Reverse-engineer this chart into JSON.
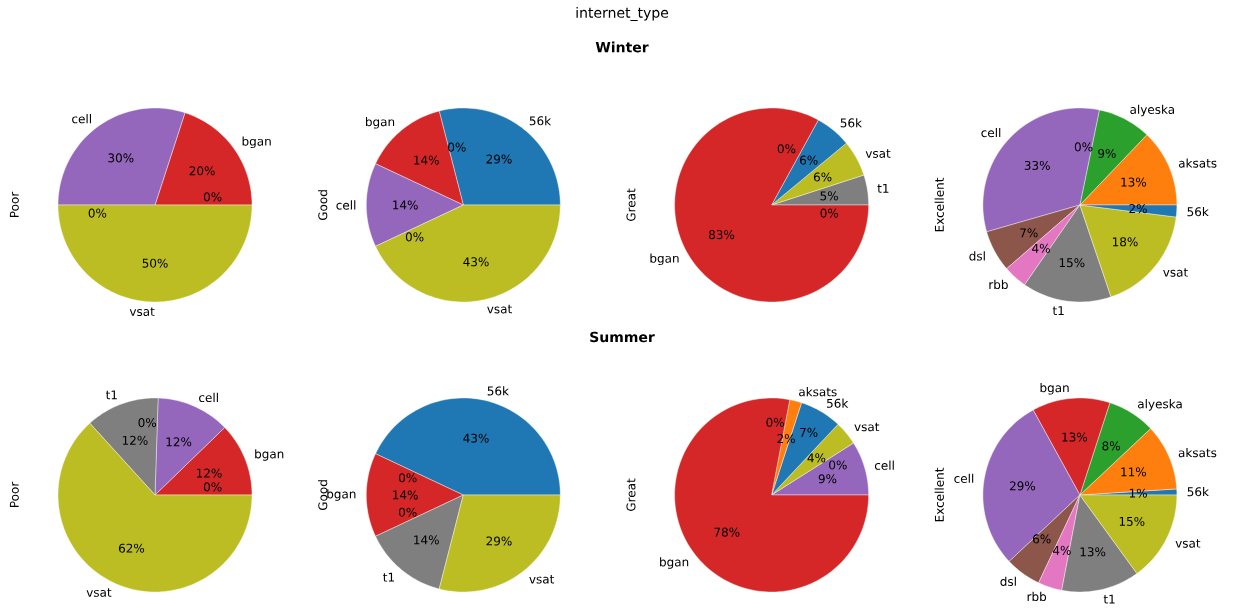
{
  "chart_data": [
    {
      "type": "pie",
      "annotations": [
        "internet_type",
        "Winter"
      ],
      "ylabel": "Poor",
      "categories": [
        "bgan",
        "cell",
        null,
        "vsat",
        null
      ],
      "values": [
        20,
        30,
        0,
        50,
        0
      ],
      "colors": [
        "#d62728",
        "#9467bd",
        "#8c564b",
        "#bcbd22",
        "#ff7f0e"
      ],
      "value_labels": [
        "20%",
        "30%",
        "0%",
        "50%",
        "0%"
      ]
    },
    {
      "type": "pie",
      "ylabel": "Good",
      "categories": [
        "56k",
        null,
        "bgan",
        "cell",
        null,
        "vsat"
      ],
      "values": [
        29,
        0,
        14,
        14,
        0,
        43
      ],
      "colors": [
        "#1f77b4",
        "#ff7f0e",
        "#d62728",
        "#9467bd",
        "#8c564b",
        "#bcbd22"
      ],
      "value_labels": [
        "29%",
        "0%",
        "14%",
        "14%",
        "0%",
        "43%"
      ]
    },
    {
      "type": "pie",
      "ylabel": "Great",
      "categories": [
        "t1",
        "vsat",
        "56k",
        null,
        "bgan",
        null
      ],
      "values": [
        5,
        6,
        6,
        0,
        83,
        0
      ],
      "colors": [
        "#7f7f7f",
        "#bcbd22",
        "#1f77b4",
        "#ff7f0e",
        "#d62728",
        "#8c564b"
      ],
      "value_labels": [
        "5%",
        "6%",
        "6%",
        "0%",
        "83%",
        "0%"
      ]
    },
    {
      "type": "pie",
      "ylabel": "Excellent",
      "categories": [
        "aksats",
        "alyeska",
        null,
        "cell",
        "dsl",
        "rbb",
        "t1",
        "vsat",
        "56k"
      ],
      "values": [
        13,
        9,
        0,
        33,
        7,
        4,
        15,
        18,
        2
      ],
      "colors": [
        "#ff7f0e",
        "#2ca02c",
        "#d62728",
        "#9467bd",
        "#8c564b",
        "#e377c2",
        "#7f7f7f",
        "#bcbd22",
        "#1f77b4"
      ],
      "value_labels": [
        "13%",
        "9%",
        "0%",
        "33%",
        "7%",
        "4%",
        "15%",
        "18%",
        "2%"
      ]
    },
    {
      "type": "pie",
      "annotations": [
        "Summer"
      ],
      "ylabel": "Poor",
      "categories": [
        "bgan",
        "cell",
        null,
        "t1",
        "vsat",
        null
      ],
      "values": [
        12,
        12,
        0,
        12,
        62,
        0
      ],
      "colors": [
        "#d62728",
        "#9467bd",
        "#8c564b",
        "#7f7f7f",
        "#bcbd22",
        "#1f77b4"
      ],
      "value_labels": [
        "12%",
        "12%",
        "0%",
        "12%",
        "62%",
        "0%"
      ]
    },
    {
      "type": "pie",
      "ylabel": "Good",
      "categories": [
        "56k",
        null,
        "bgan",
        null,
        "t1",
        "vsat"
      ],
      "values": [
        43,
        0,
        14,
        0,
        14,
        29
      ],
      "colors": [
        "#1f77b4",
        "#ff7f0e",
        "#d62728",
        "#9467bd",
        "#7f7f7f",
        "#bcbd22"
      ],
      "value_labels": [
        "43%",
        "0%",
        "14%",
        "0%",
        "14%",
        "29%"
      ]
    },
    {
      "type": "pie",
      "ylabel": "Great",
      "categories": [
        "cell",
        null,
        "vsat",
        "56k",
        "aksats",
        null,
        "bgan"
      ],
      "values": [
        9,
        0,
        4,
        7,
        2,
        0,
        78
      ],
      "colors": [
        "#9467bd",
        "#8c564b",
        "#bcbd22",
        "#1f77b4",
        "#ff7f0e",
        "#2ca02c",
        "#d62728"
      ],
      "value_labels": [
        "9%",
        "0%",
        "4%",
        "7%",
        "2%",
        "0%",
        "78%"
      ]
    },
    {
      "type": "pie",
      "ylabel": "Excellent",
      "categories": [
        "56k",
        "aksats",
        "alyeska",
        "bgan",
        "cell",
        "dsl",
        "rbb",
        "t1",
        "vsat"
      ],
      "values": [
        1,
        11,
        8,
        13,
        29,
        6,
        4,
        13,
        15
      ],
      "colors": [
        "#1f77b4",
        "#ff7f0e",
        "#2ca02c",
        "#d62728",
        "#9467bd",
        "#8c564b",
        "#e377c2",
        "#7f7f7f",
        "#bcbd22"
      ],
      "value_labels": [
        "1%",
        "11%",
        "8%",
        "13%",
        "29%",
        "6%",
        "4%",
        "13%",
        "15%"
      ]
    }
  ]
}
